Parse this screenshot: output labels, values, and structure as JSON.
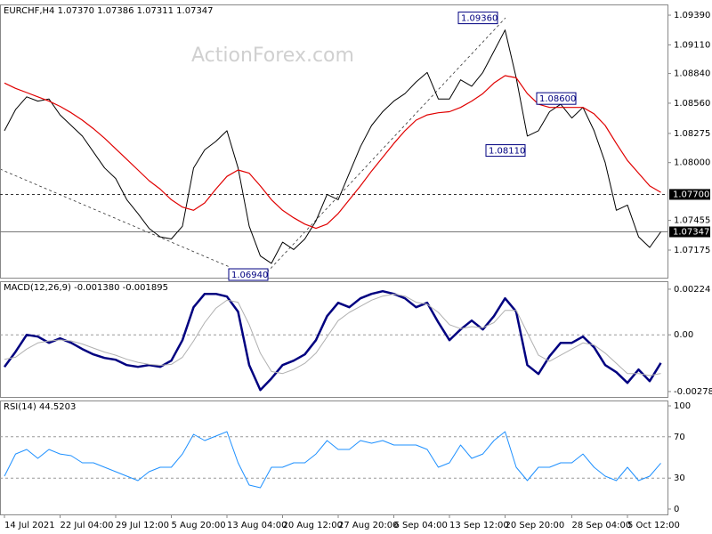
{
  "chart_data": [
    {
      "type": "line",
      "title": "EURCHF,H4  1.07370 1.07386 1.07311 1.07347",
      "watermark": "ActionForex.com",
      "xlim": [
        -0.4,
        59.6
      ],
      "ylim": [
        1.06915,
        1.09491
      ],
      "yticks": [
        {
          "value": 1.0939,
          "label": "1.09390"
        },
        {
          "value": 1.0911,
          "label": "1.09110"
        },
        {
          "value": 1.0884,
          "label": "1.08840"
        },
        {
          "value": 1.0856,
          "label": "1.08560"
        },
        1.08275,
        {
          "value": 1.08,
          "label": "1.08000"
        },
        1.07455,
        1.07175
      ],
      "series": [
        {
          "color": "#000000",
          "values": [
            1.083,
            1.085,
            1.0862,
            1.0858,
            1.086,
            1.0845,
            1.0835,
            1.0825,
            1.081,
            1.0795,
            1.0785,
            1.0765,
            1.0752,
            1.0738,
            1.073,
            1.0728,
            1.074,
            1.0795,
            1.0812,
            1.082,
            1.083,
            1.0795,
            1.074,
            1.0712,
            1.0705,
            1.0725,
            1.0718,
            1.0728,
            1.0745,
            1.077,
            1.0765,
            1.079,
            1.0815,
            1.0835,
            1.0848,
            1.0858,
            1.0865,
            1.0876,
            1.0885,
            1.086,
            1.086,
            1.0878,
            1.0872,
            1.0885,
            1.0905,
            1.0925,
            1.088,
            1.0825,
            1.083,
            1.0848,
            1.0855,
            1.0842,
            1.0852,
            1.083,
            1.08,
            1.0755,
            1.076,
            1.073,
            1.072,
            1.07347
          ]
        },
        {
          "color": "#e00000",
          "values": [
            1.0875,
            1.087,
            1.0866,
            1.0862,
            1.0858,
            1.0853,
            1.0847,
            1.084,
            1.0832,
            1.0823,
            1.0813,
            1.0803,
            1.0793,
            1.0783,
            1.0775,
            1.0765,
            1.0758,
            1.0755,
            1.0762,
            1.0775,
            1.0787,
            1.0793,
            1.079,
            1.0778,
            1.0765,
            1.0755,
            1.0748,
            1.0742,
            1.0738,
            1.0742,
            1.0752,
            1.0765,
            1.0778,
            1.0792,
            1.0805,
            1.0818,
            1.083,
            1.084,
            1.0845,
            1.0847,
            1.0848,
            1.0852,
            1.0858,
            1.0865,
            1.0875,
            1.0882,
            1.088,
            1.0865,
            1.0855,
            1.0852,
            1.0852,
            1.0852,
            1.0852,
            1.0846,
            1.0835,
            1.0818,
            1.0802,
            1.079,
            1.0778,
            1.0772
          ]
        }
      ],
      "hlines": [
        {
          "value": 1.077,
          "label": "1.07700",
          "style": "dotted"
        },
        {
          "value": 1.07347,
          "label": "1.07347",
          "style": "solid"
        }
      ],
      "annotations": [
        {
          "value": 1.0936,
          "label": "1.09360"
        },
        {
          "value": 1.086,
          "label": "1.08600"
        },
        {
          "value": 1.0811,
          "label": "1.08110"
        },
        {
          "value": 1.0694,
          "label": "1.06940"
        }
      ]
    },
    {
      "type": "line",
      "title": "MACD(12,26,9) -0.001380 -0.001895",
      "xlim": [
        -0.4,
        59.6
      ],
      "ylim": [
        -0.00305,
        0.00263
      ],
      "yticks": [
        0.00224,
        {
          "value": 0,
          "label": "0.00"
        },
        -0.002785
      ],
      "levels": [
        0
      ],
      "series": [
        {
          "color": "#000080",
          "values": [
            -0.001573,
            -0.00083,
            0,
            -8.7e-05,
            -0.000393,
            -0.000175,
            -0.000393,
            -0.000699,
            -0.000961,
            -0.001136,
            -0.001224,
            -0.001486,
            -0.001573,
            -0.001486,
            -0.001573,
            -0.001267,
            -0.000262,
            0.001355,
            0.00201,
            0.00201,
            0.001879,
            0.001136,
            -0.001486,
            -0.002709,
            -0.002141,
            -0.001486,
            -0.001267,
            -0.000961,
            -0.000262,
            0.000918,
            0.001573,
            0.001355,
            0.001791,
            0.00201,
            0.002141,
            0.00201,
            0.001791,
            0.001355,
            0.001573,
            0.000612,
            -0.000262,
            0.000262,
            0.000699,
            0.000262,
            0.000918,
            0.001791,
            0.001136,
            -0.001486,
            -0.001923,
            -0.001049,
            -0.000393,
            -0.000393,
            -8.7e-05,
            -0.000612,
            -0.001486,
            -0.001835,
            -0.00236,
            -0.001704,
            -0.002272,
            -0.00138
          ]
        },
        {
          "color": "#b0b0b0",
          "values": [
            -0.0012,
            -0.0011,
            -0.0007,
            -0.0004,
            -0.0003,
            -0.00025,
            -0.0003,
            -0.00045,
            -0.00065,
            -0.00085,
            -0.001,
            -0.0012,
            -0.00135,
            -0.00145,
            -0.0015,
            -0.00145,
            -0.0011,
            -0.0003,
            0.0006,
            0.0013,
            0.0017,
            0.0016,
            0.0005,
            -0.0009,
            -0.0018,
            -0.0019,
            -0.0017,
            -0.0014,
            -0.0009,
            -0.0001,
            0.0007,
            0.0011,
            0.0014,
            0.0017,
            0.0019,
            0.002,
            0.0019,
            0.0016,
            0.0015,
            0.0011,
            0.0005,
            0.0003,
            0.0004,
            0.00035,
            0.0006,
            0.0012,
            0.0012,
            0.0001,
            -0.001,
            -0.0013,
            -0.001,
            -0.0007,
            -0.0004,
            -0.0005,
            -0.0009,
            -0.0014,
            -0.0019,
            -0.0019,
            -0.002,
            -0.001895
          ]
        }
      ]
    },
    {
      "type": "line",
      "title": "RSI(14) 44.5203",
      "xlim": [
        -0.4,
        59.6
      ],
      "ylim": [
        -5.2,
        105.2
      ],
      "yticks": [
        100,
        70,
        30,
        0
      ],
      "levels": [
        70,
        30
      ],
      "series": [
        {
          "color": "#1e90ff",
          "values": [
            31.9,
            53.4,
            57.8,
            49.1,
            57.8,
            53.4,
            51.7,
            44.8,
            44.8,
            40.5,
            36.2,
            31.9,
            27.6,
            36.2,
            40.5,
            40.5,
            53.4,
            72.4,
            66.4,
            70.7,
            75.0,
            44.8,
            23.3,
            20.7,
            40.5,
            40.5,
            44.8,
            44.8,
            53.4,
            66.4,
            57.8,
            57.8,
            66.4,
            63.8,
            66.4,
            62.1,
            62.1,
            62.1,
            57.8,
            40.5,
            44.8,
            62.1,
            49.1,
            53.4,
            66.4,
            75.0,
            40.5,
            27.6,
            40.5,
            40.5,
            44.8,
            44.8,
            53.4,
            40.5,
            31.9,
            27.6,
            40.5,
            27.6,
            31.9,
            44.5203
          ]
        }
      ],
      "xticks": [
        {
          "value": 0,
          "label": "14 Jul 2021"
        },
        {
          "value": 5,
          "label": "22 Jul 04:00"
        },
        {
          "value": 10,
          "label": "29 Jul 12:00"
        },
        {
          "value": 15,
          "label": "5 Aug 20:00"
        },
        {
          "value": 20,
          "label": "13 Aug 04:00"
        },
        {
          "value": 25,
          "label": "20 Aug 12:00"
        },
        {
          "value": 30,
          "label": "27 Aug 20:00"
        },
        {
          "value": 35,
          "label": "6 Sep 04:00"
        },
        {
          "value": 40,
          "label": "13 Sep 12:00"
        },
        {
          "value": 45,
          "label": "20 Sep 20:00"
        },
        {
          "value": 51,
          "label": "28 Sep 04:00"
        },
        {
          "value": 56,
          "label": "5 Oct 12:00"
        }
      ]
    }
  ]
}
